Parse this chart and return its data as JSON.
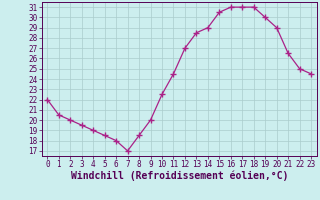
{
  "x": [
    0,
    1,
    2,
    3,
    4,
    5,
    6,
    7,
    8,
    9,
    10,
    11,
    12,
    13,
    14,
    15,
    16,
    17,
    18,
    19,
    20,
    21,
    22,
    23
  ],
  "y": [
    22,
    20.5,
    20,
    19.5,
    19,
    18.5,
    18,
    17,
    18.5,
    20,
    22.5,
    24.5,
    27,
    28.5,
    29,
    30.5,
    31,
    31,
    31,
    30,
    29,
    26.5,
    25,
    24.5
  ],
  "line_color": "#aa2288",
  "marker": "+",
  "marker_size": 4,
  "background_color": "#cceeee",
  "grid_color": "#aacccc",
  "xlabel": "Windchill (Refroidissement éolien,°C)",
  "ylim_min": 16.5,
  "ylim_max": 31.5,
  "yticks": [
    17,
    18,
    19,
    20,
    21,
    22,
    23,
    24,
    25,
    26,
    27,
    28,
    29,
    30,
    31
  ],
  "xticks": [
    0,
    1,
    2,
    3,
    4,
    5,
    6,
    7,
    8,
    9,
    10,
    11,
    12,
    13,
    14,
    15,
    16,
    17,
    18,
    19,
    20,
    21,
    22,
    23
  ],
  "tick_label_fontsize": 5.5,
  "xlabel_fontsize": 7.0,
  "axis_label_color": "#550055"
}
